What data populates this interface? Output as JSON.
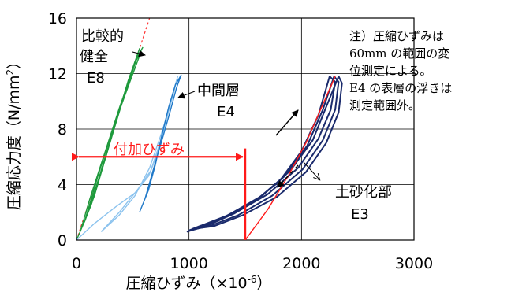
{
  "chart_data": {
    "type": "line",
    "xlabel": "圧縮ひずみ（×10",
    "xlabel_exp": "-6",
    "xlabel_close": "）",
    "ylabel": "圧縮応力度（N/mm",
    "ylabel_exp": "2",
    "ylabel_close": "）",
    "xlim": [
      0,
      3000
    ],
    "ylim": [
      0,
      16
    ],
    "x_ticks": [
      0,
      1000,
      2000,
      3000
    ],
    "y_ticks": [
      0,
      4,
      8,
      12,
      16
    ],
    "grid": true,
    "colors": {
      "E8": "#1e9a3c",
      "E4_dark": "#1f78c8",
      "E4_light": "#8cc3ee",
      "E3": "#1a2a6c",
      "red": "#ff1a1a"
    },
    "annotations": {
      "e8_line1": "比較的",
      "e8_line2": "健全",
      "e8_code": "E8",
      "e4_line1": "中間層",
      "e4_code": "E4",
      "e3_line1": "土砂化部",
      "e3_code": "E3",
      "added_strain": "付加ひずみ",
      "added_strain_value": 1500
    },
    "note_lines": [
      "注）圧縮ひずみは",
      "60mm の範囲の変",
      "位測定による。",
      "E4 の表層の浮きは",
      "測定範囲外。"
    ],
    "series": [
      {
        "id": "E8-ref",
        "style": "dashed",
        "color": "#ff3333",
        "points": [
          [
            0,
            0
          ],
          [
            650,
            16
          ]
        ]
      },
      {
        "id": "E8",
        "color": "#1e9a3c",
        "loops": [
          [
            [
              0,
              0
            ],
            [
              80,
              1.5
            ],
            [
              200,
              4.5
            ],
            [
              330,
              8
            ],
            [
              460,
              11.5
            ],
            [
              560,
              13.8
            ],
            [
              500,
              12.2
            ],
            [
              380,
              9.5
            ],
            [
              240,
              6
            ],
            [
              120,
              3
            ],
            [
              40,
              0.8
            ]
          ],
          [
            [
              40,
              0.8
            ],
            [
              130,
              2.5
            ],
            [
              260,
              6
            ],
            [
              390,
              9.7
            ],
            [
              520,
              12.8
            ],
            [
              575,
              13.6
            ],
            [
              470,
              11.3
            ],
            [
              330,
              8.2
            ],
            [
              190,
              4.6
            ],
            [
              70,
              1.3
            ]
          ],
          [
            [
              70,
              1.3
            ],
            [
              160,
              3.2
            ],
            [
              290,
              6.8
            ],
            [
              420,
              10.3
            ],
            [
              540,
              13.2
            ],
            [
              590,
              13.9
            ]
          ]
        ]
      },
      {
        "id": "E4-light",
        "color": "#8cc3ee",
        "loops": [
          [
            [
              0,
              0
            ],
            [
              160,
              1.2
            ],
            [
              350,
              2.4
            ],
            [
              520,
              3.4
            ],
            [
              640,
              4.6
            ],
            [
              720,
              6.2
            ],
            [
              790,
              8.4
            ],
            [
              850,
              10.4
            ],
            [
              900,
              11.8
            ],
            [
              850,
              10.2
            ],
            [
              760,
              7.8
            ],
            [
              650,
              5.2
            ],
            [
              520,
              3.2
            ],
            [
              380,
              1.8
            ],
            [
              220,
              0.6
            ]
          ],
          [
            [
              220,
              0.6
            ],
            [
              380,
              2.0
            ],
            [
              540,
              3.6
            ],
            [
              660,
              5.0
            ],
            [
              750,
              7.2
            ],
            [
              830,
              9.6
            ],
            [
              890,
              11.5
            ]
          ]
        ]
      },
      {
        "id": "E4-dark",
        "color": "#1f78c8",
        "loops": [
          [
            [
              560,
              2.0
            ],
            [
              640,
              3.6
            ],
            [
              700,
              5.4
            ],
            [
              760,
              7.6
            ],
            [
              820,
              9.6
            ],
            [
              880,
              11.2
            ],
            [
              930,
              11.9
            ],
            [
              890,
              11.0
            ],
            [
              830,
              9.2
            ],
            [
              760,
              7.2
            ],
            [
              680,
              5.0
            ],
            [
              610,
              3.0
            ]
          ]
        ]
      },
      {
        "id": "E3",
        "color": "#1a2a6c",
        "loops": [
          [
            [
              980,
              0.6
            ],
            [
              1250,
              1.4
            ],
            [
              1550,
              2.6
            ],
            [
              1800,
              4.2
            ],
            [
              2000,
              6.4
            ],
            [
              2150,
              9.0
            ],
            [
              2250,
              11.8
            ],
            [
              2300,
              11.4
            ],
            [
              2260,
              9.4
            ],
            [
              2150,
              7.3
            ],
            [
              1970,
              5.2
            ],
            [
              1700,
              3.3
            ],
            [
              1400,
              1.9
            ],
            [
              1150,
              1.0
            ],
            [
              980,
              0.6
            ]
          ],
          [
            [
              1000,
              0.7
            ],
            [
              1300,
              1.6
            ],
            [
              1600,
              2.9
            ],
            [
              1850,
              4.6
            ],
            [
              2050,
              6.8
            ],
            [
              2190,
              9.4
            ],
            [
              2290,
              11.8
            ],
            [
              2330,
              11.4
            ],
            [
              2300,
              9.4
            ],
            [
              2190,
              7.2
            ],
            [
              2010,
              5.1
            ],
            [
              1740,
              3.2
            ],
            [
              1440,
              1.8
            ],
            [
              1180,
              1.0
            ],
            [
              1000,
              0.7
            ]
          ],
          [
            [
              1030,
              0.8
            ],
            [
              1350,
              1.8
            ],
            [
              1650,
              3.2
            ],
            [
              1900,
              5.0
            ],
            [
              2100,
              7.2
            ],
            [
              2230,
              9.8
            ],
            [
              2330,
              11.8
            ],
            [
              2360,
              11.3
            ],
            [
              2330,
              9.2
            ],
            [
              2220,
              7.0
            ],
            [
              2040,
              4.9
            ],
            [
              1780,
              3.1
            ],
            [
              1480,
              1.8
            ],
            [
              1220,
              1.0
            ],
            [
              1030,
              0.8
            ]
          ]
        ]
      },
      {
        "id": "E3-red",
        "color": "#ff1a1a",
        "loops": [
          [
            [
              1500,
              0
            ],
            [
              1700,
              2.2
            ],
            [
              1880,
              4.6
            ],
            [
              2040,
              7.0
            ],
            [
              2180,
              9.6
            ],
            [
              2300,
              11.8
            ]
          ]
        ]
      }
    ]
  }
}
